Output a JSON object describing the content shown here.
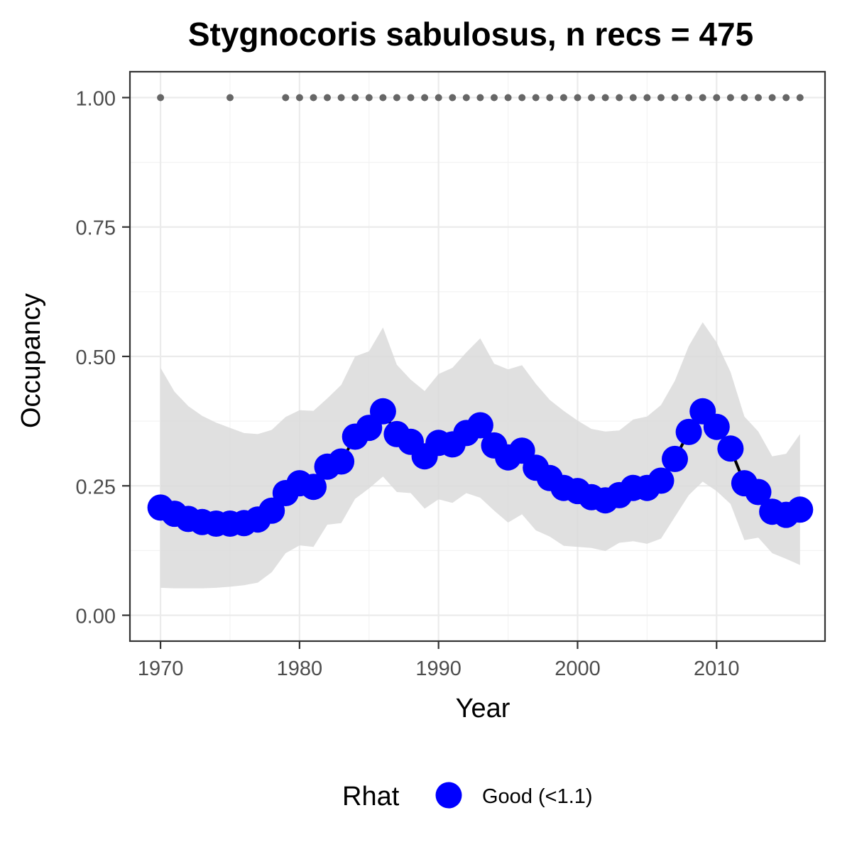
{
  "chart_data": {
    "type": "line",
    "title": "Stygnocoris sabulosus, n recs = 475",
    "xlabel": "Year",
    "ylabel": "Occupancy",
    "xlim": [
      1967.8,
      2017.8
    ],
    "ylim": [
      -0.05,
      1.05
    ],
    "xticks": [
      1970,
      1980,
      1990,
      2000,
      2010
    ],
    "xtick_labels": [
      "1970",
      "1980",
      "1990",
      "2000",
      "2010"
    ],
    "yticks": [
      0,
      0.25,
      0.5,
      0.75,
      1
    ],
    "ytick_labels": [
      "0.00",
      "0.25",
      "0.50",
      "0.75",
      "1.00"
    ],
    "grid": true,
    "legend": {
      "title": "Rhat",
      "placement": "bottom",
      "entries": [
        {
          "label": "Good (<1.1)",
          "color": "#0000ff"
        }
      ]
    },
    "colors": {
      "points": "#0000ff",
      "line": "#000000",
      "band": "#d9d9d9",
      "records": "#666666"
    },
    "series": [
      {
        "x": [
          1970,
          1971,
          1972,
          1973,
          1974,
          1975,
          1976,
          1977,
          1978,
          1979,
          1980,
          1981,
          1982,
          1983,
          1984,
          1985,
          1986,
          1987,
          1988,
          1989,
          1990,
          1991,
          1992,
          1993,
          1994,
          1995,
          1996,
          1997,
          1998,
          1999,
          2000,
          2001,
          2002,
          2003,
          2004,
          2005,
          2006,
          2007,
          2008,
          2009,
          2010,
          2011,
          2012,
          2013,
          2014,
          2015,
          2016
        ],
        "y": [
          0.208,
          0.196,
          0.186,
          0.18,
          0.177,
          0.177,
          0.178,
          0.185,
          0.202,
          0.236,
          0.255,
          0.248,
          0.287,
          0.297,
          0.345,
          0.362,
          0.394,
          0.35,
          0.335,
          0.307,
          0.333,
          0.33,
          0.352,
          0.367,
          0.328,
          0.305,
          0.318,
          0.285,
          0.265,
          0.246,
          0.24,
          0.228,
          0.222,
          0.232,
          0.246,
          0.246,
          0.26,
          0.302,
          0.354,
          0.394,
          0.364,
          0.322,
          0.255,
          0.238,
          0.2,
          0.194,
          0.204
        ],
        "lower": [
          0.053,
          0.052,
          0.052,
          0.052,
          0.053,
          0.055,
          0.058,
          0.063,
          0.083,
          0.12,
          0.135,
          0.132,
          0.175,
          0.178,
          0.225,
          0.245,
          0.268,
          0.238,
          0.236,
          0.206,
          0.224,
          0.217,
          0.236,
          0.227,
          0.202,
          0.179,
          0.195,
          0.164,
          0.152,
          0.134,
          0.132,
          0.13,
          0.124,
          0.14,
          0.143,
          0.138,
          0.148,
          0.19,
          0.232,
          0.258,
          0.24,
          0.215,
          0.145,
          0.15,
          0.12,
          0.109,
          0.097
        ],
        "upper": [
          0.478,
          0.432,
          0.404,
          0.385,
          0.372,
          0.362,
          0.352,
          0.35,
          0.358,
          0.383,
          0.396,
          0.395,
          0.419,
          0.445,
          0.5,
          0.51,
          0.556,
          0.484,
          0.455,
          0.433,
          0.466,
          0.478,
          0.508,
          0.535,
          0.486,
          0.475,
          0.483,
          0.447,
          0.416,
          0.395,
          0.376,
          0.36,
          0.355,
          0.357,
          0.378,
          0.384,
          0.406,
          0.453,
          0.52,
          0.566,
          0.527,
          0.47,
          0.384,
          0.355,
          0.307,
          0.312,
          0.35
        ]
      }
    ],
    "records": {
      "y": 1.0,
      "years": [
        1970,
        1975,
        1979,
        1980,
        1981,
        1982,
        1983,
        1984,
        1985,
        1986,
        1987,
        1988,
        1989,
        1990,
        1991,
        1992,
        1993,
        1994,
        1995,
        1996,
        1997,
        1998,
        1999,
        2000,
        2001,
        2002,
        2003,
        2004,
        2005,
        2006,
        2007,
        2008,
        2009,
        2010,
        2011,
        2012,
        2013,
        2014,
        2015,
        2016
      ]
    }
  }
}
